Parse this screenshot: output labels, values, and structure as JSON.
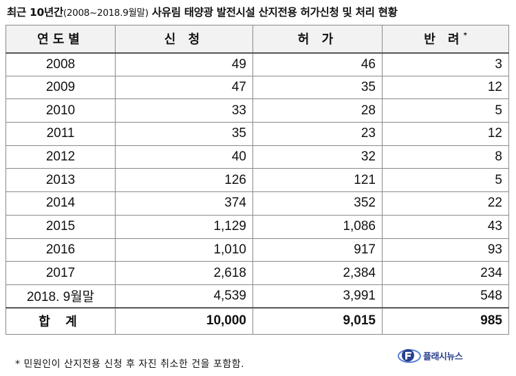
{
  "title": {
    "main_a": "최근 10년간",
    "sub": "(2008~2018.9월말)",
    "main_b": " 사유림 태양광 발전시설 산지전용 허가신청 및 처리 현황"
  },
  "table": {
    "headers": {
      "year": "연도별",
      "apply": "신 청",
      "permit": "허 가",
      "reject": "반 려",
      "reject_mark": "*"
    },
    "rows": [
      {
        "year": "2008",
        "apply": "49",
        "permit": "46",
        "reject": "3"
      },
      {
        "year": "2009",
        "apply": "47",
        "permit": "35",
        "reject": "12"
      },
      {
        "year": "2010",
        "apply": "33",
        "permit": "28",
        "reject": "5"
      },
      {
        "year": "2011",
        "apply": "35",
        "permit": "23",
        "reject": "12"
      },
      {
        "year": "2012",
        "apply": "40",
        "permit": "32",
        "reject": "8"
      },
      {
        "year": "2013",
        "apply": "126",
        "permit": "121",
        "reject": "5"
      },
      {
        "year": "2014",
        "apply": "374",
        "permit": "352",
        "reject": "22"
      },
      {
        "year": "2015",
        "apply": "1,129",
        "permit": "1,086",
        "reject": "43"
      },
      {
        "year": "2016",
        "apply": "1,010",
        "permit": "917",
        "reject": "93"
      },
      {
        "year": "2017",
        "apply": "2,618",
        "permit": "2,384",
        "reject": "234"
      },
      {
        "year": "2018. 9월말",
        "apply": "4,539",
        "permit": "3,991",
        "reject": "548"
      }
    ],
    "total": {
      "year": "합 계",
      "apply": "10,000",
      "permit": "9,015",
      "reject": "985"
    }
  },
  "footnote": "* 민원인이 산지전용 신청 후 자진 취소한 건을 포함함.",
  "logo": {
    "text": "플래시뉴스",
    "icon": "flash-news-logo-icon",
    "color": "#2a3f8e"
  }
}
